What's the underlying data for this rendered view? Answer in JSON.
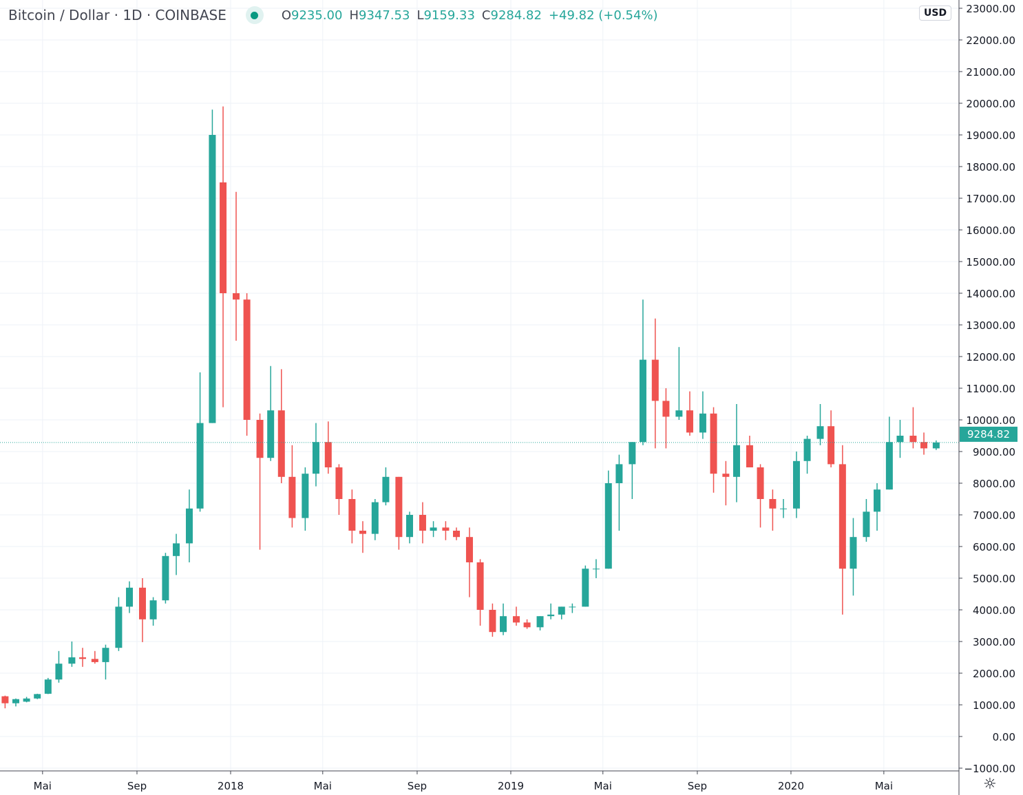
{
  "header": {
    "symbol": "Bitcoin / Dollar",
    "interval": "1D",
    "exchange": "COINBASE",
    "open_label": "O",
    "open": "9235.00",
    "high_label": "H",
    "high": "9347.53",
    "low_label": "L",
    "low": "9159.33",
    "close_label": "C",
    "close": "9284.82",
    "change": "+49.82 (+0.54%)"
  },
  "currency_button": "USD",
  "settings_icon": "gear-icon",
  "colors": {
    "up": "#26a69a",
    "down": "#ef5350",
    "grid": "#eef2f7",
    "axis": "#434651",
    "last_price_bg": "#26a69a"
  },
  "chart_data": {
    "type": "candlestick",
    "title": "Bitcoin / Dollar · 1D · COINBASE",
    "ylim": [
      -1000,
      23000
    ],
    "yticks": [
      "23000.00",
      "22000.00",
      "21000.00",
      "20000.00",
      "19000.00",
      "18000.00",
      "17000.00",
      "16000.00",
      "15000.00",
      "14000.00",
      "13000.00",
      "12000.00",
      "11000.00",
      "10000.00",
      "9000.00",
      "8000.00",
      "7000.00",
      "6000.00",
      "5000.00",
      "4000.00",
      "3000.00",
      "2000.00",
      "1000.00",
      "0.00",
      "−1000.00"
    ],
    "xticks": [
      {
        "date": "2017-05-01",
        "label": "Mai"
      },
      {
        "date": "2017-09-01",
        "label": "Sep"
      },
      {
        "date": "2018-01-01",
        "label": "2018"
      },
      {
        "date": "2018-05-01",
        "label": "Mai"
      },
      {
        "date": "2018-09-01",
        "label": "Sep"
      },
      {
        "date": "2019-01-01",
        "label": "2019"
      },
      {
        "date": "2019-05-01",
        "label": "Mai"
      },
      {
        "date": "2019-09-01",
        "label": "Sep"
      },
      {
        "date": "2020-01-01",
        "label": "2020"
      },
      {
        "date": "2020-05-01",
        "label": "Mai"
      }
    ],
    "xlim": [
      "2017-03-06",
      "2020-07-22"
    ],
    "last_price": "9284.82",
    "grid": true,
    "candles_columns": [
      "date",
      "open",
      "high",
      "low",
      "close"
    ],
    "candles": [
      [
        "2017-03-06",
        1270,
        1290,
        890,
        1050
      ],
      [
        "2017-03-20",
        1050,
        1200,
        950,
        1180
      ],
      [
        "2017-04-03",
        1100,
        1250,
        1080,
        1200
      ],
      [
        "2017-04-17",
        1200,
        1350,
        1180,
        1340
      ],
      [
        "2017-05-01",
        1350,
        1850,
        1340,
        1800
      ],
      [
        "2017-05-15",
        1800,
        2700,
        1700,
        2300
      ],
      [
        "2017-06-01",
        2300,
        3000,
        2200,
        2500
      ],
      [
        "2017-06-15",
        2500,
        2800,
        2200,
        2450
      ],
      [
        "2017-07-01",
        2450,
        2700,
        2300,
        2350
      ],
      [
        "2017-07-15",
        2350,
        2900,
        1800,
        2800
      ],
      [
        "2017-08-01",
        2800,
        4400,
        2700,
        4100
      ],
      [
        "2017-08-15",
        4100,
        4900,
        3900,
        4700
      ],
      [
        "2017-09-01",
        4700,
        5000,
        2980,
        3700
      ],
      [
        "2017-09-15",
        3700,
        4400,
        3500,
        4300
      ],
      [
        "2017-10-01",
        4300,
        5800,
        4200,
        5700
      ],
      [
        "2017-10-15",
        5700,
        6400,
        5100,
        6100
      ],
      [
        "2017-11-01",
        6100,
        7800,
        5500,
        7200
      ],
      [
        "2017-11-15",
        7200,
        11500,
        7100,
        9900
      ],
      [
        "2017-12-01",
        9900,
        19800,
        9900,
        19000
      ],
      [
        "2017-12-15",
        17500,
        19900,
        10400,
        14000
      ],
      [
        "2018-01-01",
        14000,
        17200,
        12500,
        13800
      ],
      [
        "2018-01-15",
        13800,
        14000,
        9500,
        10000
      ],
      [
        "2018-02-01",
        10000,
        10200,
        5900,
        8800
      ],
      [
        "2018-02-15",
        8800,
        11700,
        8700,
        10300
      ],
      [
        "2018-03-01",
        10300,
        11600,
        8000,
        8200
      ],
      [
        "2018-03-15",
        8200,
        9200,
        6600,
        6900
      ],
      [
        "2018-04-01",
        6900,
        8500,
        6500,
        8300
      ],
      [
        "2018-04-15",
        8300,
        9900,
        7900,
        9300
      ],
      [
        "2018-05-01",
        9300,
        9950,
        8300,
        8500
      ],
      [
        "2018-05-15",
        8500,
        8600,
        7000,
        7500
      ],
      [
        "2018-06-01",
        7500,
        7800,
        6100,
        6500
      ],
      [
        "2018-06-15",
        6500,
        6800,
        5800,
        6400
      ],
      [
        "2018-07-01",
        6400,
        7500,
        6200,
        7400
      ],
      [
        "2018-07-15",
        7400,
        8500,
        7300,
        8200
      ],
      [
        "2018-08-01",
        8200,
        8200,
        5900,
        6300
      ],
      [
        "2018-08-15",
        6300,
        7100,
        6100,
        7000
      ],
      [
        "2018-09-01",
        7000,
        7400,
        6100,
        6500
      ],
      [
        "2018-09-15",
        6500,
        6800,
        6300,
        6600
      ],
      [
        "2018-10-01",
        6600,
        6800,
        6200,
        6500
      ],
      [
        "2018-10-15",
        6500,
        6600,
        6200,
        6300
      ],
      [
        "2018-11-01",
        6300,
        6600,
        4400,
        5500
      ],
      [
        "2018-11-15",
        5500,
        5600,
        3500,
        4000
      ],
      [
        "2018-12-01",
        4000,
        4200,
        3150,
        3300
      ],
      [
        "2018-12-15",
        3300,
        4200,
        3200,
        3800
      ],
      [
        "2019-01-01",
        3800,
        4100,
        3500,
        3600
      ],
      [
        "2019-01-15",
        3600,
        3700,
        3400,
        3450
      ],
      [
        "2019-02-01",
        3450,
        3800,
        3350,
        3800
      ],
      [
        "2019-02-15",
        3800,
        4200,
        3700,
        3850
      ],
      [
        "2019-03-01",
        3850,
        4100,
        3700,
        4100
      ],
      [
        "2019-03-15",
        4100,
        4200,
        3900,
        4100
      ],
      [
        "2019-04-01",
        4100,
        5400,
        4100,
        5300
      ],
      [
        "2019-04-15",
        5300,
        5600,
        5000,
        5300
      ],
      [
        "2019-05-01",
        5300,
        8400,
        5300,
        8000
      ],
      [
        "2019-05-15",
        8000,
        8900,
        6500,
        8600
      ],
      [
        "2019-06-01",
        8600,
        9300,
        7500,
        9300
      ],
      [
        "2019-06-15",
        9300,
        13800,
        9200,
        11900
      ],
      [
        "2019-07-01",
        11900,
        13200,
        9100,
        10600
      ],
      [
        "2019-07-15",
        10600,
        11000,
        9100,
        10100
      ],
      [
        "2019-08-01",
        10100,
        12300,
        10000,
        10300
      ],
      [
        "2019-08-15",
        10300,
        10900,
        9500,
        9600
      ],
      [
        "2019-09-01",
        9600,
        10900,
        9400,
        10200
      ],
      [
        "2019-09-15",
        10200,
        10400,
        7700,
        8300
      ],
      [
        "2019-10-01",
        8300,
        8700,
        7300,
        8200
      ],
      [
        "2019-10-15",
        8200,
        10500,
        7400,
        9200
      ],
      [
        "2019-11-01",
        9200,
        9500,
        8500,
        8500
      ],
      [
        "2019-11-15",
        8500,
        8600,
        6600,
        7500
      ],
      [
        "2019-12-01",
        7500,
        7800,
        6500,
        7200
      ],
      [
        "2019-12-15",
        7200,
        7500,
        6900,
        7200
      ],
      [
        "2020-01-01",
        7200,
        9000,
        6900,
        8700
      ],
      [
        "2020-01-15",
        8700,
        9500,
        8300,
        9400
      ],
      [
        "2020-02-01",
        9400,
        10500,
        9200,
        9800
      ],
      [
        "2020-02-15",
        9800,
        10300,
        8500,
        8600
      ],
      [
        "2020-03-01",
        8600,
        9200,
        3850,
        5300
      ],
      [
        "2020-03-15",
        5300,
        6900,
        4450,
        6300
      ],
      [
        "2020-04-01",
        6300,
        7500,
        6150,
        7100
      ],
      [
        "2020-04-15",
        7100,
        8000,
        6500,
        7800
      ],
      [
        "2020-05-01",
        7800,
        10100,
        7800,
        9300
      ],
      [
        "2020-05-15",
        9300,
        10000,
        8800,
        9500
      ],
      [
        "2020-06-01",
        9500,
        10400,
        9100,
        9300
      ],
      [
        "2020-06-15",
        9300,
        9600,
        8900,
        9100
      ],
      [
        "2020-07-01",
        9100,
        9350,
        9050,
        9285
      ]
    ]
  }
}
